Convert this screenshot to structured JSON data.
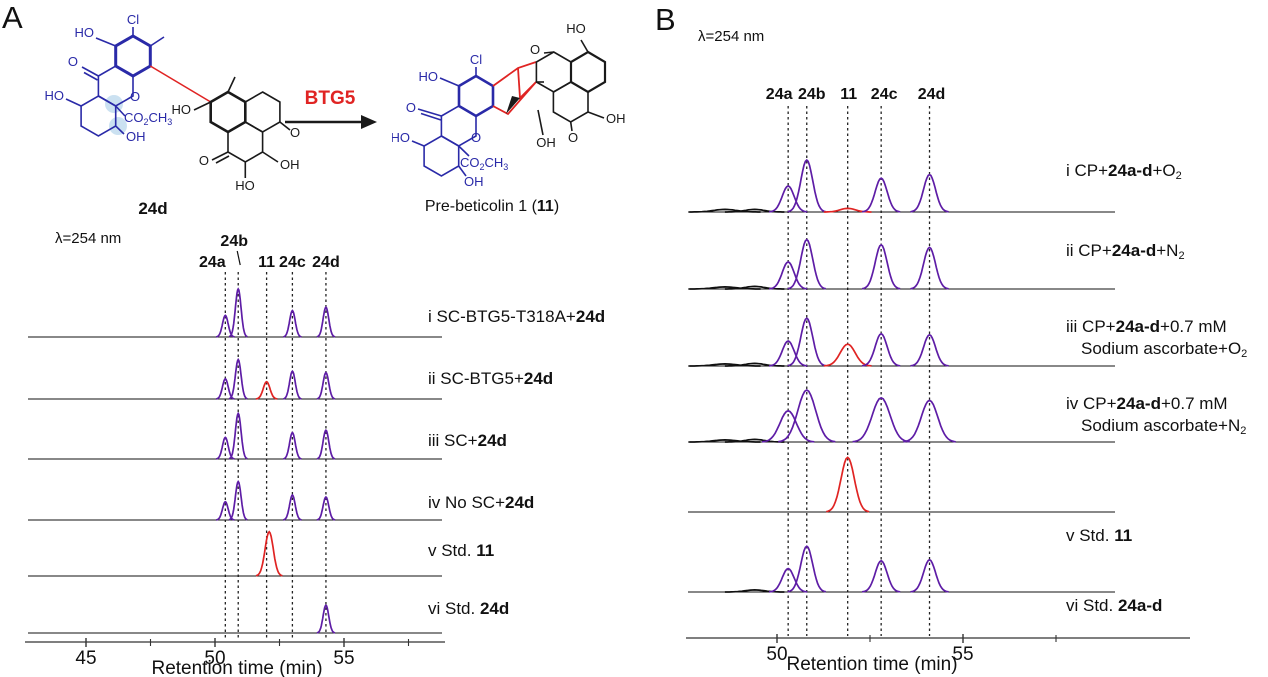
{
  "colors": {
    "trace": "#5e1da6",
    "highlight": "#e02423",
    "structure_blue": "#2a2aa8",
    "structure_black": "#1a1a1a",
    "atom_highlight": "#a9cde8"
  },
  "panelA_label": "A",
  "panelB_label": "B",
  "scheme": {
    "substrate": {
      "name": "24d",
      "atoms": {
        "cl": "Cl",
        "ho_top": "HO",
        "o_ketone": "O",
        "o_ring": "O",
        "ho_left": "HO",
        "oh": "OH",
        "ho_mid": "HO",
        "o_quinone_left": "O",
        "o_quinone_right": "O",
        "oh_right": "OH",
        "ho_bottom": "HO"
      },
      "ester_runs": [
        {
          "t": "CO"
        },
        {
          "t": "2",
          "sub": 1
        },
        {
          "t": "CH"
        },
        {
          "t": "3",
          "sub": 1
        }
      ]
    },
    "arrow_label": "BTG5",
    "product": {
      "name_runs": [
        {
          "t": "Pre-beticolin 1 ("
        },
        {
          "t": "11",
          "b": 1
        },
        {
          "t": ")"
        }
      ],
      "atoms": {
        "ho_top_right": "HO",
        "o_top": "O",
        "cl": "Cl",
        "ho_upper_left": "HO",
        "o_ketone": "O",
        "ho_left": "HO",
        "o_ring": "O",
        "oh_bottom": "OH",
        "oh_mid": "OH",
        "o_lower": "O",
        "oh_right": "OH"
      },
      "ester_runs": [
        {
          "t": "CO"
        },
        {
          "t": "2",
          "sub": 1
        },
        {
          "t": "CH"
        },
        {
          "t": "3",
          "sub": 1
        }
      ]
    }
  },
  "chart_data": [
    {
      "panel": "A",
      "type": "line",
      "title": "λ=254 nm",
      "xlabel": "Retention time (min)",
      "x_ticks": [
        45,
        50,
        55
      ],
      "x_minor_ticks": [
        47.5,
        52.5,
        57.5
      ],
      "x_range": [
        42.6,
        58.9
      ],
      "grid": false,
      "legend": "none",
      "peaks_annotated": [
        {
          "label": "24a",
          "t": 50.4,
          "dx": -13
        },
        {
          "label": "24b",
          "t": 50.9,
          "dx": -4,
          "raised": 1
        },
        {
          "label": "11",
          "t": 52.0,
          "dx": 0
        },
        {
          "label": "24c",
          "t": 53.0,
          "dx": 0
        },
        {
          "label": "24d",
          "t": 54.3,
          "dx": 0
        }
      ],
      "traces": [
        {
          "id": "i",
          "label_lines": [
            [
              {
                "t": "i SC-BTG5-T318A+"
              },
              {
                "t": "24d",
                "b": 1
              }
            ]
          ],
          "peaks": [
            {
              "t": 50.4,
              "h": 0.45
            },
            {
              "t": 50.9,
              "h": 1.0
            },
            {
              "t": 53.0,
              "h": 0.55
            },
            {
              "t": 54.3,
              "h": 0.62
            }
          ]
        },
        {
          "id": "ii",
          "label_lines": [
            [
              {
                "t": "ii SC-BTG5+"
              },
              {
                "t": "24d",
                "b": 1
              }
            ]
          ],
          "peaks": [
            {
              "t": 50.4,
              "h": 0.42
            },
            {
              "t": 50.9,
              "h": 0.82
            },
            {
              "t": 52.0,
              "h": 0.36,
              "red": 1,
              "w": 0.13
            },
            {
              "t": 53.0,
              "h": 0.58
            },
            {
              "t": 54.3,
              "h": 0.55
            }
          ]
        },
        {
          "id": "iii",
          "label_lines": [
            [
              {
                "t": "iii SC+"
              },
              {
                "t": "24d",
                "b": 1
              }
            ]
          ],
          "peaks": [
            {
              "t": 50.4,
              "h": 0.45
            },
            {
              "t": 50.9,
              "h": 0.95
            },
            {
              "t": 53.0,
              "h": 0.55
            },
            {
              "t": 54.3,
              "h": 0.6
            }
          ]
        },
        {
          "id": "iv",
          "label_lines": [
            [
              {
                "t": "iv No SC+"
              },
              {
                "t": "24d",
                "b": 1
              }
            ]
          ],
          "peaks": [
            {
              "t": 50.4,
              "h": 0.38
            },
            {
              "t": 50.9,
              "h": 0.8
            },
            {
              "t": 53.0,
              "h": 0.52
            },
            {
              "t": 54.3,
              "h": 0.48
            }
          ]
        },
        {
          "id": "v",
          "label_lines": [
            [
              {
                "t": "v Std. "
              },
              {
                "t": "11",
                "b": 1
              }
            ]
          ],
          "peaks": [
            {
              "t": 52.1,
              "h": 0.92,
              "red": 1,
              "w": 0.16
            }
          ]
        },
        {
          "id": "vi",
          "label_lines": [
            [
              {
                "t": "vi Std. "
              },
              {
                "t": "24d",
                "b": 1
              }
            ]
          ],
          "peaks": [
            {
              "t": 54.3,
              "h": 0.58
            }
          ]
        }
      ]
    },
    {
      "panel": "B",
      "type": "line",
      "title": "λ=254 nm",
      "xlabel": "Retention time (min)",
      "x_ticks": [
        50,
        55
      ],
      "x_minor_ticks": [
        52.5,
        57.5
      ],
      "x_range": [
        47.6,
        58.7
      ],
      "grid": false,
      "legend": "none",
      "peaks_annotated": [
        {
          "label": "24a",
          "t": 50.3,
          "dx": -9
        },
        {
          "label": "24b",
          "t": 50.8,
          "dx": 5
        },
        {
          "label": "11",
          "t": 51.9,
          "dx": 1
        },
        {
          "label": "24c",
          "t": 52.8,
          "dx": 3
        },
        {
          "label": "24d",
          "t": 54.1,
          "dx": 2
        }
      ],
      "traces": [
        {
          "id": "i",
          "label_lines": [
            [
              {
                "t": "i CP+"
              },
              {
                "t": "24a-d",
                "b": 1
              },
              {
                "t": "+O"
              },
              {
                "t": "2",
                "sub": 1
              }
            ]
          ],
          "peaks": [
            {
              "t": 48.6,
              "h": 0.05,
              "w": 0.3
            },
            {
              "t": 49.4,
              "h": 0.05,
              "w": 0.25
            },
            {
              "t": 50.3,
              "h": 0.5
            },
            {
              "t": 50.8,
              "h": 1.0
            },
            {
              "t": 51.9,
              "h": 0.07,
              "red": 1,
              "w": 0.2
            },
            {
              "t": 52.8,
              "h": 0.65
            },
            {
              "t": 54.1,
              "h": 0.72
            }
          ]
        },
        {
          "id": "ii",
          "label_lines": [
            [
              {
                "t": "ii CP+"
              },
              {
                "t": "24a-d",
                "b": 1
              },
              {
                "t": "+N"
              },
              {
                "t": "2",
                "sub": 1
              }
            ]
          ],
          "peaks": [
            {
              "t": 48.6,
              "h": 0.04,
              "w": 0.3
            },
            {
              "t": 49.4,
              "h": 0.05,
              "w": 0.25
            },
            {
              "t": 50.3,
              "h": 0.52
            },
            {
              "t": 50.8,
              "h": 0.95
            },
            {
              "t": 52.8,
              "h": 0.85
            },
            {
              "t": 54.1,
              "h": 0.8
            }
          ]
        },
        {
          "id": "iii",
          "label_lines": [
            [
              {
                "t": "iii CP+"
              },
              {
                "t": "24a-d",
                "b": 1
              },
              {
                "t": "+0.7 mM"
              }
            ],
            [
              {
                "t": "Sodium ascorbate+O"
              },
              {
                "t": "2",
                "sub": 1
              }
            ]
          ],
          "peaks": [
            {
              "t": 48.6,
              "h": 0.04,
              "w": 0.3
            },
            {
              "t": 49.4,
              "h": 0.05,
              "w": 0.25
            },
            {
              "t": 50.3,
              "h": 0.48
            },
            {
              "t": 50.8,
              "h": 0.92
            },
            {
              "t": 51.9,
              "h": 0.42,
              "red": 1,
              "w": 0.2
            },
            {
              "t": 52.8,
              "h": 0.62
            },
            {
              "t": 54.1,
              "h": 0.6
            }
          ]
        },
        {
          "id": "iv",
          "label_lines": [
            [
              {
                "t": "iv CP+"
              },
              {
                "t": "24a-d",
                "b": 1
              },
              {
                "t": "+0.7 mM"
              }
            ],
            [
              {
                "t": "Sodium ascorbate+N"
              },
              {
                "t": "2",
                "sub": 1
              }
            ]
          ],
          "peaks": [
            {
              "t": 48.6,
              "h": 0.04,
              "w": 0.3
            },
            {
              "t": 49.4,
              "h": 0.05,
              "w": 0.25
            },
            {
              "t": 50.3,
              "h": 0.6,
              "w": 0.22
            },
            {
              "t": 50.8,
              "h": 1.0,
              "w": 0.24
            },
            {
              "t": 52.8,
              "h": 0.85,
              "w": 0.24
            },
            {
              "t": 54.1,
              "h": 0.8,
              "w": 0.22
            }
          ]
        },
        {
          "id": "v",
          "label_lines": [
            [
              {
                "t": "v Std. "
              },
              {
                "t": "11",
                "b": 1
              }
            ]
          ],
          "peaks": [
            {
              "t": 51.9,
              "h": 1.05,
              "red": 1,
              "w": 0.18
            }
          ]
        },
        {
          "id": "vi",
          "label_lines": [
            [
              {
                "t": "vi Std. "
              },
              {
                "t": "24a-d",
                "b": 1
              }
            ]
          ],
          "peaks": [
            {
              "t": 49.4,
              "h": 0.04,
              "w": 0.25
            },
            {
              "t": 50.3,
              "h": 0.45
            },
            {
              "t": 50.8,
              "h": 0.88
            },
            {
              "t": 52.8,
              "h": 0.6
            },
            {
              "t": 54.1,
              "h": 0.62
            }
          ]
        }
      ]
    }
  ]
}
